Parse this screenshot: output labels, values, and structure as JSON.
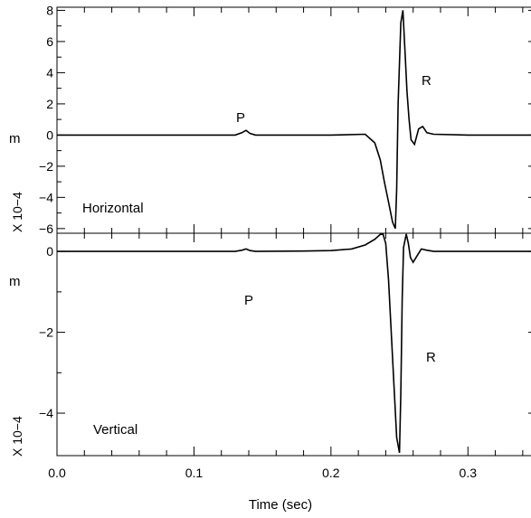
{
  "chart_data": [
    {
      "type": "line",
      "panel": "top",
      "label": "Horizontal",
      "ylabel_unit": "m",
      "ylabel_scale": "X 10−4",
      "xlim": [
        0,
        0.35
      ],
      "ylim": [
        -6.3,
        8.2
      ],
      "yticks": [
        8,
        6,
        4,
        2,
        0,
        -2,
        -4,
        -6
      ],
      "ytick_labels": [
        "8",
        "6",
        "4",
        "2",
        "0",
        "−2",
        "−4",
        "−6"
      ],
      "annotations": [
        {
          "text": "P",
          "x": 0.137,
          "y": 1.6
        },
        {
          "text": "R",
          "x": 0.276,
          "y": 3.6
        }
      ],
      "series": [
        {
          "x": [
            0,
            0.05,
            0.1,
            0.13,
            0.135,
            0.138,
            0.141,
            0.145,
            0.2,
            0.225,
            0.232,
            0.236,
            0.239,
            0.242,
            0.245,
            0.247,
            0.248,
            0.249,
            0.251,
            0.2525,
            0.254,
            0.2555,
            0.257,
            0.2585,
            0.261,
            0.264,
            0.267,
            0.27,
            0.275,
            0.3,
            0.35
          ],
          "y": [
            0,
            0,
            0,
            0,
            0.15,
            0.3,
            0.1,
            0,
            0,
            0.05,
            -0.5,
            -1.6,
            -3,
            -4.3,
            -5.6,
            -6,
            -3.5,
            2,
            7.2,
            8,
            5.5,
            2.8,
            1,
            -0.3,
            -0.6,
            0.4,
            0.55,
            0.15,
            0.05,
            0,
            0
          ]
        }
      ]
    },
    {
      "type": "line",
      "panel": "bottom",
      "label": "Vertical",
      "ylabel_unit": "m",
      "ylabel_scale": "X 10−4",
      "xlabel": "Time (sec)",
      "xlim": [
        0,
        0.35
      ],
      "ylim": [
        -5.05,
        0.45
      ],
      "yticks": [
        0,
        -2,
        -4
      ],
      "ytick_labels": [
        "0",
        "−2",
        "−4"
      ],
      "xticks": [
        0,
        0.1,
        0.2,
        0.3
      ],
      "xtick_labels": [
        "0.0",
        "0.1",
        "0.2",
        "0.3"
      ],
      "annotations": [
        {
          "text": "P",
          "x": 0.138,
          "y": -0.55
        },
        {
          "text": "R",
          "x": 0.279,
          "y": -2.2
        }
      ],
      "series": [
        {
          "x": [
            0,
            0.05,
            0.1,
            0.13,
            0.135,
            0.138,
            0.141,
            0.145,
            0.18,
            0.2,
            0.215,
            0.225,
            0.232,
            0.236,
            0.238,
            0.24,
            0.242,
            0.244,
            0.246,
            0.248,
            0.25,
            0.251,
            0.252,
            0.253,
            0.255,
            0.2565,
            0.258,
            0.26,
            0.263,
            0.266,
            0.27,
            0.275,
            0.3,
            0.35
          ],
          "y": [
            0,
            0,
            0,
            0,
            0.03,
            0.06,
            0.02,
            0,
            0.01,
            0.02,
            0.06,
            0.16,
            0.3,
            0.42,
            0.43,
            0.2,
            -0.7,
            -2,
            -3.3,
            -4.6,
            -4.98,
            -3.5,
            -1.2,
            0.1,
            0.43,
            0.2,
            -0.15,
            -0.27,
            -0.1,
            0.06,
            0.03,
            0,
            0,
            0
          ]
        }
      ]
    }
  ]
}
